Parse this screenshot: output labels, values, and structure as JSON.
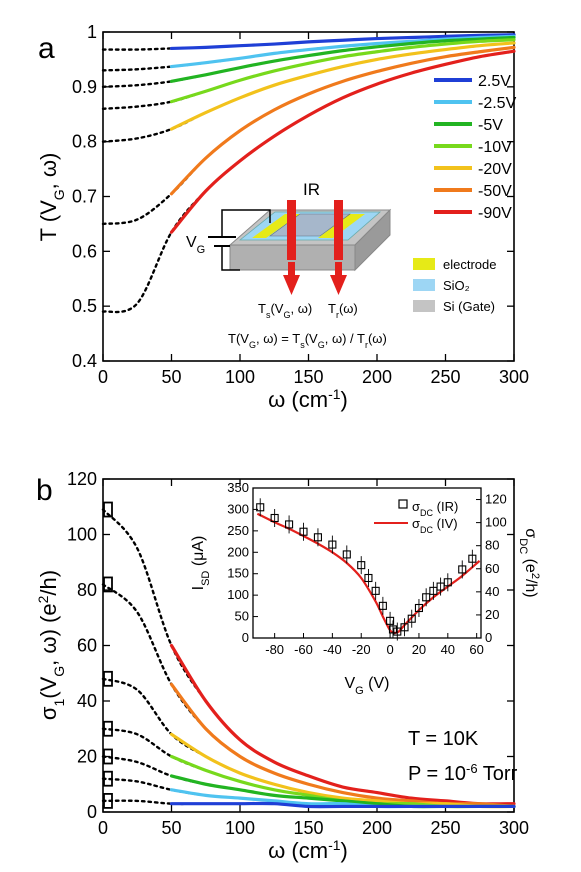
{
  "chart_data": [
    {
      "panel": "a",
      "type": "line",
      "xlabel": "ω (cm⁻¹)",
      "ylabel": "T (V_G, ω)",
      "xlim": [
        0,
        300
      ],
      "ylim": [
        0.4,
        1.0
      ],
      "xticks": [
        0,
        50,
        100,
        150,
        200,
        250,
        300
      ],
      "yticks": [
        0.4,
        0.5,
        0.6,
        0.7,
        0.8,
        0.9,
        1.0
      ],
      "x": [
        0,
        25,
        50,
        75,
        100,
        125,
        150,
        175,
        200,
        225,
        250,
        275,
        300
      ],
      "legend_position": "right",
      "series": [
        {
          "name": "2.5V",
          "color": "#1f3fd6",
          "values": [
            0.968,
            0.968,
            0.97,
            0.972,
            0.975,
            0.978,
            0.982,
            0.985,
            0.988,
            0.99,
            0.992,
            0.994,
            0.995
          ]
        },
        {
          "name": "-2.5V",
          "color": "#4fc3f0",
          "values": [
            0.93,
            0.932,
            0.937,
            0.944,
            0.952,
            0.961,
            0.968,
            0.974,
            0.979,
            0.983,
            0.987,
            0.99,
            0.992
          ]
        },
        {
          "name": "-5V",
          "color": "#22b422",
          "values": [
            0.9,
            0.903,
            0.91,
            0.922,
            0.935,
            0.947,
            0.957,
            0.966,
            0.973,
            0.979,
            0.984,
            0.987,
            0.99
          ]
        },
        {
          "name": "-10V",
          "color": "#77d91c",
          "values": [
            0.86,
            0.864,
            0.873,
            0.892,
            0.912,
            0.929,
            0.943,
            0.955,
            0.964,
            0.972,
            0.978,
            0.983,
            0.986
          ]
        },
        {
          "name": "-20V",
          "color": "#f2c21c",
          "values": [
            0.8,
            0.806,
            0.823,
            0.853,
            0.88,
            0.903,
            0.921,
            0.937,
            0.95,
            0.96,
            0.968,
            0.975,
            0.98
          ]
        },
        {
          "name": "-50V",
          "color": "#f07a1c",
          "values": [
            0.65,
            0.658,
            0.705,
            0.77,
            0.82,
            0.858,
            0.887,
            0.91,
            0.928,
            0.943,
            0.955,
            0.964,
            0.972
          ]
        },
        {
          "name": "-90V",
          "color": "#e3201c",
          "values": [
            0.49,
            0.505,
            0.635,
            0.71,
            0.765,
            0.81,
            0.848,
            0.88,
            0.905,
            0.925,
            0.941,
            0.955,
            0.965
          ]
        }
      ],
      "inset_labels": {
        "ir": "IR",
        "vg": "V_G",
        "ts": "T_s(V_G, ω)",
        "tr": "T_r(ω)",
        "equation": "T(V_G, ω) = T_s(V_G, ω) / T_r(ω)"
      },
      "material_legend": [
        {
          "name": "electrode",
          "color": "#e6ea17"
        },
        {
          "name": "SiO₂",
          "color": "#9dd6f4"
        },
        {
          "name": "Si (Gate)",
          "color": "#c4c4c4"
        }
      ]
    },
    {
      "panel": "b",
      "type": "line",
      "xlabel": "ω (cm⁻¹)",
      "ylabel": "σ₁(V_G, ω) (e²/h)",
      "xlim": [
        0,
        300
      ],
      "ylim": [
        0,
        120
      ],
      "xticks": [
        0,
        50,
        100,
        150,
        200,
        250,
        300
      ],
      "yticks": [
        0,
        20,
        40,
        60,
        80,
        100,
        120
      ],
      "x": [
        0,
        25,
        50,
        75,
        100,
        125,
        150,
        175,
        200,
        225,
        250,
        275,
        300
      ],
      "annotations": [
        "T = 10K",
        "P = 10⁻⁶ Torr"
      ],
      "dc_markers": [
        {
          "series": "-90V",
          "value": 109
        },
        {
          "series": "-50V",
          "value": 82
        },
        {
          "series": "-20V",
          "value": 48
        },
        {
          "series": "-10V",
          "value": 30
        },
        {
          "series": "-5V",
          "value": 20
        },
        {
          "series": "-2.5V",
          "value": 12
        },
        {
          "series": "2.5V",
          "value": 4
        }
      ],
      "series": [
        {
          "name": "-90V",
          "color": "#e3201c",
          "values": [
            109,
            95,
            60,
            40,
            26,
            18,
            13,
            9,
            7,
            5,
            4,
            3,
            3
          ]
        },
        {
          "name": "-50V",
          "color": "#f07a1c",
          "values": [
            82,
            72,
            46,
            30,
            20,
            14,
            10,
            7,
            5,
            4,
            3,
            3,
            2
          ]
        },
        {
          "name": "-20V",
          "color": "#f2c21c",
          "values": [
            48,
            44,
            28,
            20,
            14,
            10,
            7,
            5,
            4,
            3,
            3,
            2,
            2
          ]
        },
        {
          "name": "-10V",
          "color": "#77d91c",
          "values": [
            30,
            28,
            20,
            15,
            11,
            8,
            6,
            4,
            3,
            3,
            2,
            2,
            2
          ]
        },
        {
          "name": "-5V",
          "color": "#22b422",
          "values": [
            20,
            18,
            13,
            10,
            8,
            6,
            5,
            4,
            3,
            2,
            2,
            2,
            2
          ]
        },
        {
          "name": "-2.5V",
          "color": "#4fc3f0",
          "values": [
            12,
            11,
            8,
            6,
            5,
            4,
            3,
            3,
            2,
            2,
            2,
            2,
            2
          ]
        },
        {
          "name": "2.5V",
          "color": "#1f3fd6",
          "values": [
            4,
            4,
            3,
            3,
            3,
            3,
            2,
            2,
            2,
            2,
            2,
            2,
            2
          ]
        }
      ],
      "inset": {
        "type": "scatter",
        "xlabel": "V_G (V)",
        "ylabel_left": "I_SD (μA)",
        "ylabel_right": "σ_DC (e²/h)",
        "xlim": [
          -95,
          63
        ],
        "ylim_left": [
          0,
          350
        ],
        "ylim_right": [
          0,
          130
        ],
        "xticks": [
          -80,
          -60,
          -40,
          -20,
          0,
          20,
          40,
          60
        ],
        "yticks_left": [
          0,
          50,
          100,
          150,
          200,
          250,
          300,
          350
        ],
        "yticks_right": [
          0,
          20,
          40,
          60,
          80,
          100,
          120
        ],
        "legend": [
          {
            "name": "σ_DC (IR)",
            "marker": "open-square",
            "color": "#000000"
          },
          {
            "name": "σ_DC (IV)",
            "marker": "line",
            "color": "#e3201c"
          }
        ],
        "ir_points": {
          "x": [
            -90,
            -80,
            -70,
            -60,
            -50,
            -40,
            -30,
            -20,
            -15,
            -10,
            -5,
            0,
            2,
            5,
            10,
            15,
            20,
            25,
            30,
            35,
            40,
            50,
            57
          ],
          "y": [
            305,
            280,
            265,
            248,
            235,
            218,
            195,
            170,
            140,
            110,
            75,
            40,
            20,
            15,
            25,
            45,
            70,
            95,
            110,
            120,
            130,
            160,
            185
          ]
        },
        "iv_curve": {
          "x": [
            -92,
            -80,
            -70,
            -60,
            -50,
            -40,
            -30,
            -20,
            -10,
            -5,
            0,
            3,
            6,
            10,
            20,
            30,
            40,
            50,
            62
          ],
          "y": [
            290,
            270,
            255,
            238,
            220,
            200,
            175,
            140,
            85,
            50,
            18,
            12,
            15,
            30,
            65,
            95,
            120,
            145,
            180
          ]
        }
      }
    }
  ]
}
